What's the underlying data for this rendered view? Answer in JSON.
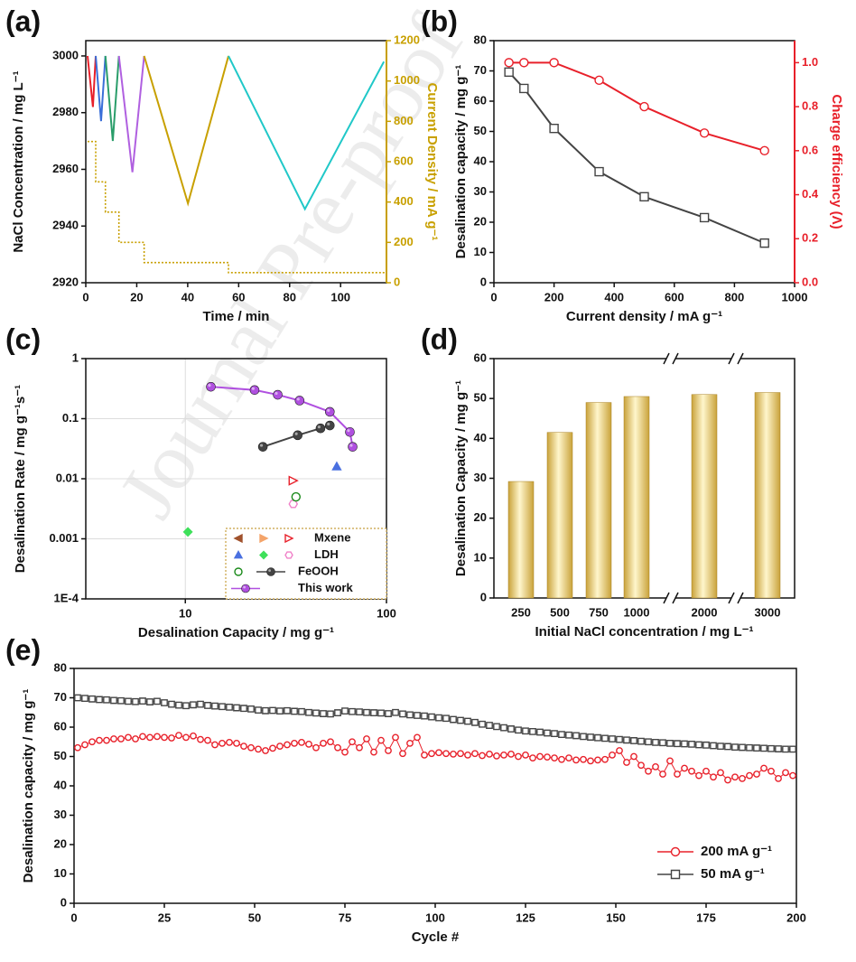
{
  "watermark": "Journal Pre-proof",
  "chart_data": [
    {
      "type": "line",
      "label": "(a)",
      "xlabel": "Time / min",
      "ylabel": "NaCl Concentration / mg L⁻¹",
      "y2label": "Current Density / mA g⁻¹",
      "xlim": [
        0,
        118
      ],
      "xticks": [
        0,
        20,
        40,
        60,
        80,
        100
      ],
      "ylim": [
        2920,
        3005.4
      ],
      "yticks": [
        2920,
        2940,
        2960,
        2980,
        3000
      ],
      "y2lim": [
        0,
        1200
      ],
      "y2ticks": [
        0,
        200,
        400,
        600,
        800,
        1000,
        1200
      ],
      "series": [
        {
          "color": "#e8202a",
          "x": [
            0.7,
            2.8,
            3.9
          ],
          "values": [
            3000,
            2982,
            3000
          ]
        },
        {
          "color": "#3a6fd8",
          "x": [
            3.9,
            6,
            7.7
          ],
          "values": [
            3000,
            2977,
            3000
          ]
        },
        {
          "color": "#2a9d6a",
          "x": [
            7.7,
            10.6,
            13
          ],
          "values": [
            3000,
            2970,
            3000
          ]
        },
        {
          "color": "#b060e0",
          "x": [
            13,
            18.3,
            22.9
          ],
          "values": [
            3000,
            2959,
            3000
          ]
        },
        {
          "color": "#c8a000",
          "x": [
            22.9,
            40.1,
            56
          ],
          "values": [
            3000,
            2948,
            3000
          ]
        },
        {
          "color": "#20c8c8",
          "x": [
            56,
            86,
            117
          ],
          "values": [
            3000,
            2946,
            2998
          ]
        },
        {
          "color": "#c8a000",
          "axis": "y2",
          "dash": "dotted",
          "x": [
            0.7,
            3.9,
            3.9,
            7.7,
            7.7,
            13,
            13,
            22.9,
            22.9,
            56,
            56,
            118
          ],
          "values": [
            700,
            700,
            500,
            500,
            350,
            350,
            200,
            200,
            100,
            100,
            50,
            50
          ]
        }
      ]
    },
    {
      "type": "line",
      "label": "(b)",
      "xlabel": "Current density / mA g⁻¹",
      "ylabel": "Desalination capacity / mg g⁻¹",
      "y2label": "Charge efficiency (Λ)",
      "xlim": [
        0,
        1000
      ],
      "xticks": [
        0,
        200,
        400,
        600,
        800,
        1000
      ],
      "ylim": [
        0,
        80
      ],
      "yticks": [
        0,
        10,
        20,
        30,
        40,
        50,
        60,
        70,
        80
      ],
      "y2lim": [
        0,
        1.1
      ],
      "y2ticks": [
        {
          "value": 0,
          "label": "0.0"
        },
        0.2,
        0.4,
        0.6,
        0.8,
        {
          "value": 1,
          "label": "1.0"
        }
      ],
      "series": [
        {
          "color": "#444444",
          "marker": "square-open",
          "x": [
            50,
            100,
            200,
            350,
            500,
            700,
            900
          ],
          "values": [
            69.6,
            64.2,
            51,
            36.7,
            28.4,
            21.5,
            13.1
          ]
        },
        {
          "color": "#e8202a",
          "marker": "circle-open",
          "axis": "y2",
          "x": [
            50,
            100,
            200,
            350,
            500,
            700,
            900
          ],
          "values": [
            1.0,
            1.0,
            1.0,
            0.92,
            0.8,
            0.68,
            0.6
          ]
        }
      ]
    },
    {
      "type": "scatter",
      "label": "(c)",
      "xlabel": "Desalination Capacity / mg g⁻¹",
      "ylabel": "Desalination Rate / mg g⁻¹s⁻¹",
      "xlog": true,
      "ylog": true,
      "grid": true,
      "xlim": [
        3.2,
        100
      ],
      "xticks": [
        10,
        100
      ],
      "ylim": [
        0.0001,
        1
      ],
      "yticks": [
        {
          "value": 0.0001,
          "label": "1E-4"
        },
        0.001,
        0.01,
        0.1,
        1
      ],
      "series": [
        {
          "color": "#a0522d",
          "marker": "triangle-left",
          "x": [],
          "values": []
        },
        {
          "color": "#f4a46a",
          "marker": "triangle-right",
          "x": [],
          "values": []
        },
        {
          "color": "#e8202a",
          "marker": "triangle-right-open",
          "name": "Mxene",
          "x": [
            34.4
          ],
          "values": [
            0.0093
          ]
        },
        {
          "color": "#4a70e0",
          "marker": "triangle-up",
          "x": [
            56.6
          ],
          "values": [
            0.016
          ]
        },
        {
          "color": "#3ee05a",
          "marker": "diamond",
          "x": [
            10.3
          ],
          "values": [
            0.0013
          ]
        },
        {
          "color": "#f080c8",
          "marker": "hexagon-open",
          "name": "LDH",
          "x": [
            34.4
          ],
          "values": [
            0.0038
          ]
        },
        {
          "color": "#1a8a1a",
          "marker": "circle-open",
          "x": [
            35.5
          ],
          "values": [
            0.005
          ]
        },
        {
          "color": "#444444",
          "marker": "sphere",
          "line": true,
          "name": "FeOOH",
          "x": [
            24.3,
            36.2,
            47,
            52.3
          ],
          "values": [
            0.034,
            0.053,
            0.069,
            0.077
          ]
        },
        {
          "color": "#b050e0",
          "marker": "sphere",
          "line": true,
          "name": "This work",
          "x": [
            13.4,
            22.1,
            28.8,
            37,
            52.3,
            65.8,
            67.9
          ],
          "values": [
            0.34,
            0.3,
            0.25,
            0.2,
            0.13,
            0.06,
            0.034
          ]
        }
      ]
    },
    {
      "type": "bar",
      "label": "(d)",
      "xlabel": "Initial NaCl concentration / mg L⁻¹",
      "ylabel": "Desalination Capacity / mg g⁻¹",
      "categories": [
        "250",
        "500",
        "750",
        "1000",
        "2000",
        "3000"
      ],
      "values": [
        29.2,
        41.5,
        49,
        50.5,
        51,
        51.5
      ],
      "color": "#c9a23a",
      "ylim": [
        0,
        60
      ],
      "yticks": [
        0,
        10,
        20,
        30,
        40,
        50,
        60
      ]
    },
    {
      "type": "line",
      "label": "(e)",
      "xlabel": "Cycle #",
      "ylabel": "Desalination capacity / mg g⁻¹",
      "xlim": [
        0,
        200
      ],
      "xticks": [
        0,
        25,
        50,
        75,
        100,
        125,
        150,
        175,
        200
      ],
      "ylim": [
        0,
        80
      ],
      "yticks": [
        0,
        10,
        20,
        30,
        40,
        50,
        60,
        70,
        80
      ],
      "x": [
        1,
        3,
        5,
        7,
        9,
        11,
        13,
        15,
        17,
        19,
        21,
        23,
        25,
        27,
        29,
        31,
        33,
        35,
        37,
        39,
        41,
        43,
        45,
        47,
        49,
        51,
        53,
        55,
        57,
        59,
        61,
        63,
        65,
        67,
        69,
        71,
        73,
        75,
        77,
        79,
        81,
        83,
        85,
        87,
        89,
        91,
        93,
        95,
        97,
        99,
        101,
        103,
        105,
        107,
        109,
        111,
        113,
        115,
        117,
        119,
        121,
        123,
        125,
        127,
        129,
        131,
        133,
        135,
        137,
        139,
        141,
        143,
        145,
        147,
        149,
        151,
        153,
        155,
        157,
        159,
        161,
        163,
        165,
        167,
        169,
        171,
        173,
        175,
        177,
        179,
        181,
        183,
        185,
        187,
        189,
        191,
        193,
        195,
        197,
        199
      ],
      "series": [
        {
          "name": "200 mA g⁻¹",
          "color": "#e8202a",
          "marker": "circle-open",
          "values": [
            53,
            54,
            55,
            55.5,
            55.5,
            56,
            56,
            56.5,
            56,
            56.8,
            56.5,
            56.8,
            56.5,
            56.3,
            57.2,
            56.5,
            57,
            55.8,
            55.5,
            54,
            54.5,
            54.8,
            54.5,
            53.5,
            53,
            52.5,
            52,
            52.8,
            53.5,
            54,
            54.5,
            54.8,
            54.2,
            53,
            54.5,
            55,
            53,
            51.5,
            55,
            53,
            56,
            51.5,
            55.5,
            52,
            56.5,
            51,
            54.5,
            56.5,
            50.5,
            51,
            51.3,
            51,
            50.8,
            51,
            50.5,
            51,
            50.3,
            50.8,
            50.2,
            50.5,
            50.8,
            50,
            50.5,
            49.5,
            50,
            49.8,
            49.5,
            49,
            49.5,
            48.8,
            49,
            48.5,
            48.8,
            49,
            50.5,
            52,
            48,
            50,
            47,
            45,
            46.5,
            44,
            48.5,
            44,
            46,
            45,
            43.5,
            45,
            43,
            44.5,
            42,
            43,
            42.5,
            43.5,
            44,
            46,
            45,
            42.5,
            44.5,
            43.5
          ]
        },
        {
          "name": "50 mA g⁻¹",
          "color": "#444444",
          "marker": "square-open",
          "values": [
            70,
            69.8,
            69.6,
            69.4,
            69.3,
            69.1,
            69,
            68.8,
            68.7,
            68.9,
            68.6,
            68.8,
            68.3,
            67.8,
            67.5,
            67.3,
            67.6,
            67.8,
            67.4,
            67.2,
            67,
            66.8,
            66.6,
            66.4,
            66.2,
            65.8,
            65.6,
            65.7,
            65.5,
            65.6,
            65.4,
            65.3,
            65,
            64.8,
            64.6,
            64.5,
            64.9,
            65.5,
            65.3,
            65.2,
            65,
            64.9,
            64.8,
            64.6,
            65,
            64.5,
            64.2,
            64,
            63.8,
            63.5,
            63.2,
            63,
            62.6,
            62.3,
            62,
            61.6,
            61,
            60.6,
            60.2,
            59.8,
            59.4,
            59,
            58.7,
            58.5,
            58.3,
            58,
            57.8,
            57.5,
            57.3,
            57.1,
            56.8,
            56.6,
            56.4,
            56.2,
            56,
            55.8,
            55.6,
            55.4,
            55.2,
            55,
            54.8,
            54.7,
            54.5,
            54.4,
            54.3,
            54.2,
            54,
            53.9,
            53.7,
            53.5,
            53.4,
            53.2,
            53.1,
            53,
            52.9,
            52.8,
            52.7,
            52.6,
            52.5,
            52.5
          ]
        }
      ]
    }
  ]
}
